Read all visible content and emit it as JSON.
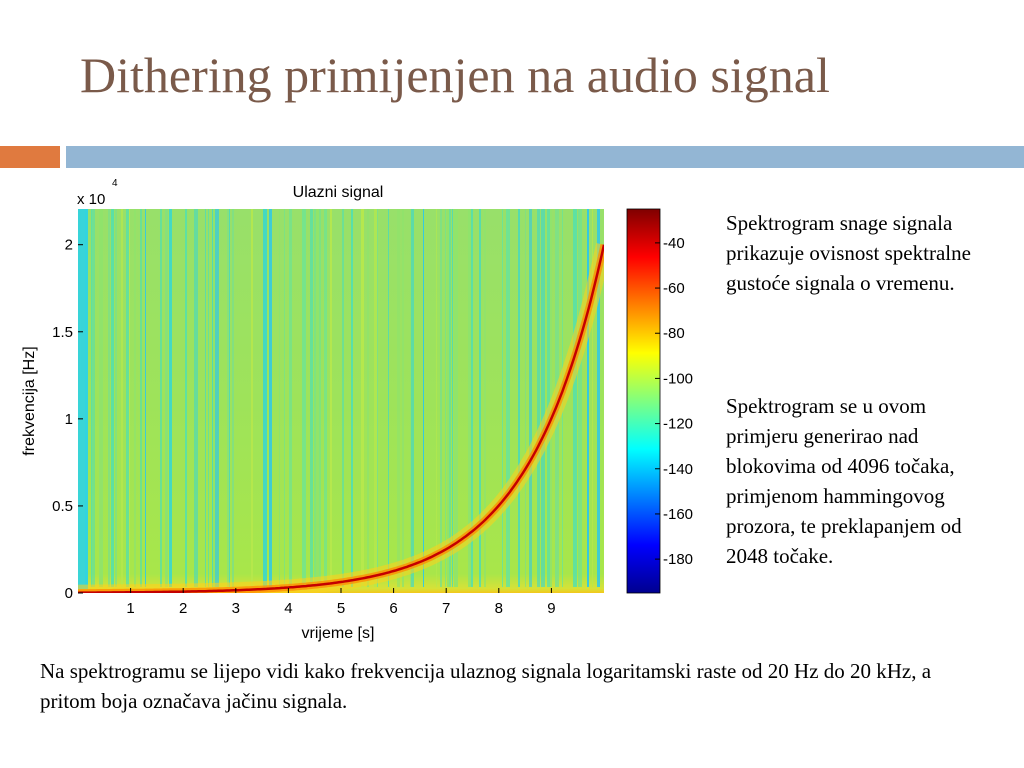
{
  "slide": {
    "title": "Dithering primijenjen na audio signal",
    "side_paragraph_1": "Spektrogram snage signala prikazuje ovisnost spektralne gustoće signala o vremenu.",
    "side_paragraph_2": "Spektrogram se u ovom primjeru generirao nad blokovima od 4096 točaka, primjenom hammingovog prozora, te preklapanjem od 2048 točake.",
    "bottom_paragraph": "Na spektrogramu se lijepo vidi kako frekvencija ulaznog signala logaritamski raste od 20 Hz do 20 kHz, a pritom boja označava jačinu signala.",
    "colors": {
      "title": "#7a5a4a",
      "accent_orange": "#e07a3f",
      "accent_blue": "#93b6d4"
    }
  },
  "chart_data": {
    "type": "heatmap",
    "title": "Ulazni signal",
    "xlabel": "vrijeme [s]",
    "ylabel": "frekvencija [Hz]",
    "y_multiplier": "x 10",
    "y_multiplier_exponent": "4",
    "xlim": [
      0,
      10
    ],
    "ylim": [
      0,
      22050
    ],
    "x_ticks": [
      1,
      2,
      3,
      4,
      5,
      6,
      7,
      8,
      9
    ],
    "x_tick_labels": [
      "1",
      "2",
      "3",
      "4",
      "5",
      "6",
      "7",
      "8",
      "9"
    ],
    "y_ticks": [
      0,
      5000,
      10000,
      15000,
      20000
    ],
    "y_tick_labels": [
      "0",
      "0.5",
      "1",
      "1.5",
      "2"
    ],
    "sweep": {
      "start_hz": 20,
      "end_hz": 20000,
      "scale": "logarithmic"
    },
    "colorbar": {
      "ticks": [
        -40,
        -60,
        -80,
        -100,
        -120,
        -140,
        -160,
        -180
      ],
      "tick_labels": [
        "-40",
        "-60",
        "-80",
        "-100",
        "-120",
        "-140",
        "-160",
        "-180"
      ],
      "range": [
        -195,
        -25
      ],
      "colormap": "jet"
    }
  }
}
